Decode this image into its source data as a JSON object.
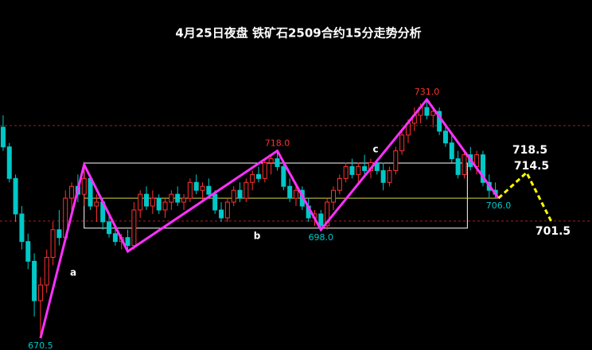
{
  "chart_data": {
    "type": "candlestick",
    "title": "4月25日夜盘  铁矿石2509合约15分走势分析",
    "xlim": [
      -0.5,
      94.5
    ],
    "ylim": [
      667.5,
      756.25
    ],
    "up_color": "#ff3232",
    "down_color": "#00c8c8",
    "candles": [
      [
        724,
        727,
        718,
        719
      ],
      [
        719,
        720,
        710,
        711
      ],
      [
        711,
        712,
        700,
        702
      ],
      [
        702,
        704,
        693,
        695
      ],
      [
        695,
        697,
        688,
        690
      ],
      [
        690,
        692,
        676,
        680
      ],
      [
        680,
        686,
        670.5,
        684
      ],
      [
        684,
        693,
        682,
        691
      ],
      [
        691,
        700,
        689,
        698
      ],
      [
        698,
        703,
        694,
        696
      ],
      [
        696,
        708,
        695,
        706
      ],
      [
        706,
        710,
        702,
        709
      ],
      [
        709,
        712,
        705,
        707
      ],
      [
        707,
        714.5,
        704,
        711
      ],
      [
        711,
        712,
        703,
        704
      ],
      [
        704,
        707,
        700,
        705
      ],
      [
        705,
        706,
        698,
        700
      ],
      [
        700,
        702,
        696,
        697
      ],
      [
        697,
        699,
        694,
        695
      ],
      [
        695,
        697,
        693,
        696
      ],
      [
        696,
        698,
        692.5,
        694
      ],
      [
        694,
        705,
        693,
        703
      ],
      [
        703,
        708,
        701,
        707
      ],
      [
        707,
        709,
        703,
        704
      ],
      [
        704,
        708,
        702,
        706
      ],
      [
        706,
        707,
        702,
        703
      ],
      [
        703,
        706,
        701,
        705
      ],
      [
        705,
        708,
        703,
        707
      ],
      [
        707,
        709,
        704,
        705
      ],
      [
        705,
        707,
        703,
        706
      ],
      [
        706,
        711,
        705,
        710
      ],
      [
        710,
        712,
        707,
        708
      ],
      [
        708,
        710,
        705,
        709
      ],
      [
        709,
        711,
        706,
        707
      ],
      [
        707,
        708,
        702,
        703
      ],
      [
        703,
        705,
        700,
        701
      ],
      [
        701,
        706,
        700,
        705
      ],
      [
        705,
        709,
        704,
        708
      ],
      [
        708,
        710,
        705,
        706
      ],
      [
        706,
        711,
        705,
        710
      ],
      [
        710,
        713,
        708,
        712
      ],
      [
        712,
        714,
        710,
        711
      ],
      [
        711,
        716,
        710,
        715
      ],
      [
        715,
        717,
        712,
        716
      ],
      [
        716,
        718,
        713,
        714
      ],
      [
        714,
        715,
        708,
        709
      ],
      [
        709,
        711,
        705,
        706
      ],
      [
        706,
        710,
        704,
        708
      ],
      [
        708,
        709,
        703,
        704
      ],
      [
        704,
        706,
        700,
        701
      ],
      [
        701,
        703,
        699,
        702
      ],
      [
        702,
        703,
        698,
        699
      ],
      [
        699,
        706,
        698,
        705
      ],
      [
        705,
        709,
        703,
        708
      ],
      [
        708,
        712,
        707,
        711
      ],
      [
        711,
        715,
        710,
        714
      ],
      [
        714,
        716,
        711,
        712
      ],
      [
        712,
        715,
        710,
        714
      ],
      [
        714,
        717,
        712,
        713
      ],
      [
        713,
        716,
        711,
        715
      ],
      [
        715,
        716,
        712,
        713
      ],
      [
        713,
        715,
        708,
        710
      ],
      [
        710,
        714,
        709,
        713
      ],
      [
        713,
        719,
        712,
        718
      ],
      [
        718,
        723,
        717,
        722
      ],
      [
        722,
        726,
        720,
        725
      ],
      [
        725,
        729,
        723,
        727
      ],
      [
        727,
        730,
        725,
        729
      ],
      [
        729,
        731,
        726,
        727
      ],
      [
        727,
        729,
        724,
        728
      ],
      [
        728,
        729,
        722,
        723
      ],
      [
        723,
        725,
        719,
        720
      ],
      [
        720,
        722,
        715,
        716
      ],
      [
        716,
        718,
        711,
        712
      ],
      [
        712,
        718,
        711,
        717
      ],
      [
        717,
        719,
        713,
        714
      ],
      [
        714,
        718,
        712,
        717
      ],
      [
        717,
        718,
        709,
        710
      ],
      [
        710,
        712,
        706,
        708
      ],
      [
        708,
        710,
        706,
        707
      ]
    ],
    "levels": [
      {
        "value": 724.4,
        "color": "#a02020"
      },
      {
        "value": 700.2,
        "color": "#a02020"
      }
    ],
    "support_line": {
      "value": 706,
      "color": "#d8d840"
    },
    "box": {
      "x": [
        13,
        74.5
      ],
      "y": [
        698.4,
        714.9
      ],
      "color": "#ffffff"
    },
    "zigzag": {
      "color": "#ff30ff",
      "x": [
        6,
        13,
        20,
        44,
        51,
        68,
        79.5
      ],
      "values": [
        670.5,
        714.5,
        692.5,
        718,
        698,
        731,
        706
      ],
      "value_labels": [
        "670.5",
        null,
        null,
        "718.0",
        "698.0",
        "731.0",
        "706.0"
      ]
    },
    "projection": {
      "color": "#ffff00",
      "x": [
        79.5,
        84,
        88
      ],
      "values": [
        706,
        712.5,
        700
      ]
    },
    "targets": [
      "718.5",
      "714.5",
      "701.5"
    ],
    "wave_labels": [
      "a",
      "b",
      "c"
    ]
  }
}
